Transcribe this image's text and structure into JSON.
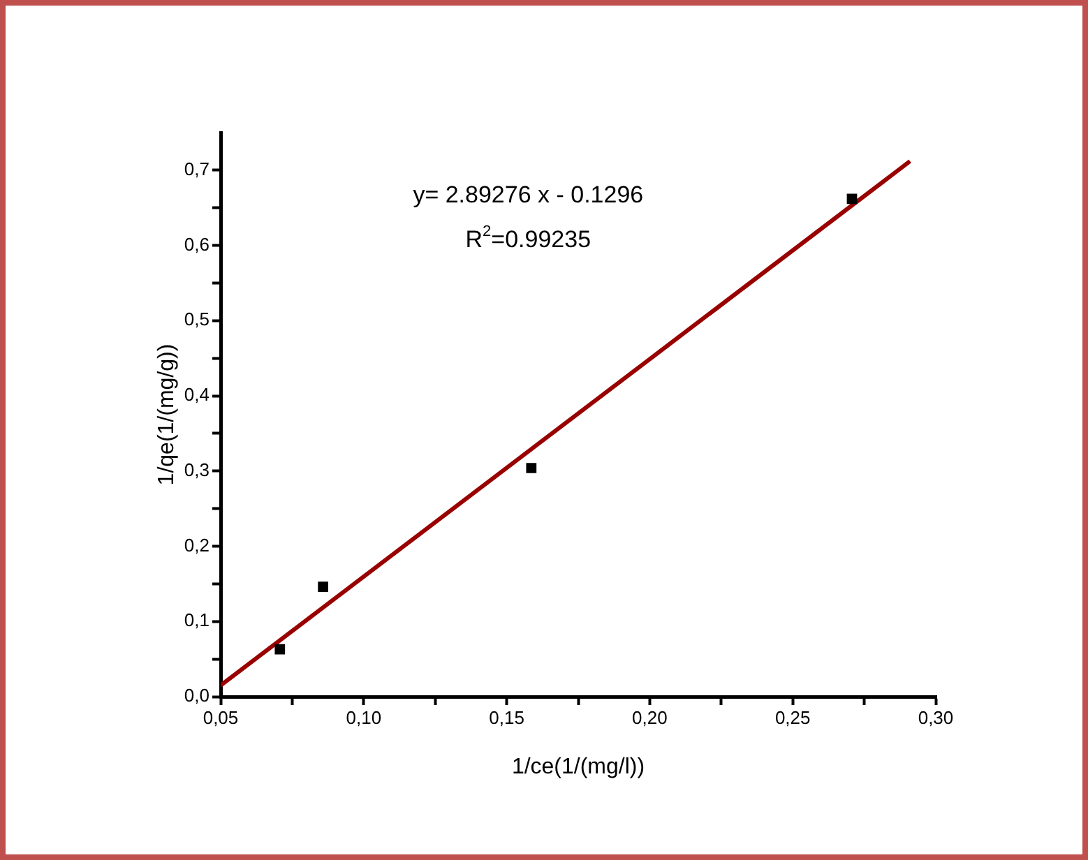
{
  "chart_data": {
    "type": "scatter",
    "xlabel": "1/ce(1/(mg/l))",
    "ylabel": "1/qe(1/(mg/g))",
    "annotations": [
      "y= 2.89276 x - 0.1296",
      "R$^{2}$=0.99235"
    ],
    "xlim": [
      0.05,
      0.3
    ],
    "ylim": [
      0,
      0.75
    ],
    "xticks": [
      {
        "value": 0.05,
        "label": "0,05"
      },
      {
        "value": 0.075,
        "label": null
      },
      {
        "value": 0.1,
        "label": "0,10"
      },
      {
        "value": 0.125,
        "label": null
      },
      {
        "value": 0.15,
        "label": "0,15"
      },
      {
        "value": 0.175,
        "label": null
      },
      {
        "value": 0.2,
        "label": "0,20"
      },
      {
        "value": 0.225,
        "label": null
      },
      {
        "value": 0.25,
        "label": "0,25"
      },
      {
        "value": 0.275,
        "label": null
      },
      {
        "value": 0.3,
        "label": "0,30"
      }
    ],
    "yticks": [
      {
        "value": 0,
        "label": "0,0"
      },
      {
        "value": 0.05,
        "label": null
      },
      {
        "value": 0.1,
        "label": "0,1"
      },
      {
        "value": 0.15,
        "label": null
      },
      {
        "value": 0.2,
        "label": "0,2"
      },
      {
        "value": 0.25,
        "label": null
      },
      {
        "value": 0.3,
        "label": "0,3"
      },
      {
        "value": 0.35,
        "label": null
      },
      {
        "value": 0.4,
        "label": "0,4"
      },
      {
        "value": 0.45,
        "label": null
      },
      {
        "value": 0.5,
        "label": "0,5"
      },
      {
        "value": 0.55,
        "label": null
      },
      {
        "value": 0.6,
        "label": "0,6"
      },
      {
        "value": 0.65,
        "label": null
      },
      {
        "value": 0.7,
        "label": "0,7"
      }
    ],
    "grid": false,
    "series": [
      {
        "color": "#000000",
        "marker": "square",
        "x": [
          0.0707,
          0.0858,
          0.1586,
          0.2707
        ],
        "values": [
          0.063,
          0.146,
          0.304,
          0.662
        ]
      },
      {
        "type": "line",
        "color": "#990000",
        "marker": "none",
        "line_style": "solid",
        "x": [
          0.05,
          0.291
        ],
        "values": [
          0.015,
          0.712
        ]
      }
    ]
  }
}
